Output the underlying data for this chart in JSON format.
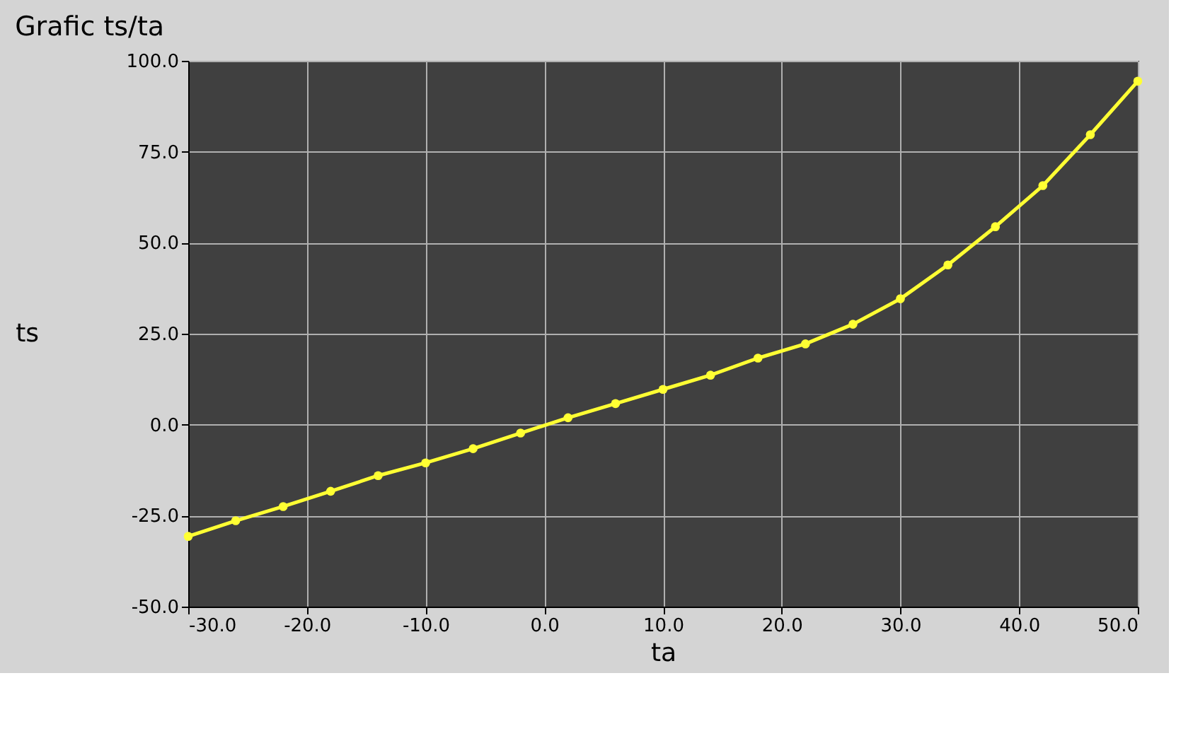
{
  "chart_data": {
    "type": "line",
    "title": "Grafic ts/ta",
    "xlabel": "ta",
    "ylabel": "ts",
    "x": [
      -30,
      -26,
      -22,
      -18,
      -14,
      -10,
      -6,
      -2,
      2,
      6,
      10,
      14,
      18,
      22,
      26,
      30,
      34,
      38,
      42,
      46,
      50
    ],
    "series": [
      {
        "color": "#ffff33",
        "values": [
          -30.7,
          -26.4,
          -22.5,
          -18.3,
          -14.0,
          -10.5,
          -6.6,
          -2.3,
          1.9,
          5.8,
          9.7,
          13.6,
          18.3,
          22.2,
          27.6,
          34.6,
          43.9,
          54.4,
          65.7,
          79.7,
          94.4
        ]
      }
    ],
    "xlim": [
      -30,
      50
    ],
    "xticks": [
      {
        "value": -30,
        "label": "-30.0"
      },
      {
        "value": -20,
        "label": "-20.0"
      },
      {
        "value": -10,
        "label": "-10.0"
      },
      {
        "value": 0,
        "label": "0.0"
      },
      {
        "value": 10,
        "label": "10.0"
      },
      {
        "value": 20,
        "label": "20.0"
      },
      {
        "value": 30,
        "label": "30.0"
      },
      {
        "value": 40,
        "label": "40.0"
      },
      {
        "value": 50,
        "label": "50.0"
      }
    ],
    "ylim": [
      -50,
      100
    ],
    "yticks": [
      {
        "value": -50,
        "label": "-50.0"
      },
      {
        "value": -25,
        "label": "-25.0"
      },
      {
        "value": 0,
        "label": "0.0"
      },
      {
        "value": 25,
        "label": "25.0"
      },
      {
        "value": 50,
        "label": "50.0"
      },
      {
        "value": 75,
        "label": "75.0"
      },
      {
        "value": 100,
        "label": "100.0"
      }
    ],
    "grid": true,
    "marker": "circle",
    "line_style": "solid"
  }
}
